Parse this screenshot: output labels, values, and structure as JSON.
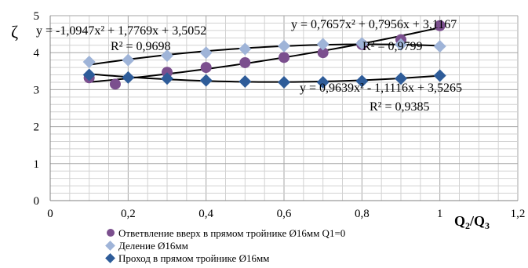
{
  "chart_data": {
    "type": "scatter",
    "title": "",
    "xlabel": "Q2/Q3",
    "xlabel_parts": [
      "Q",
      "2",
      "/Q",
      "3"
    ],
    "ylabel": "ζ",
    "xlim": [
      0,
      1.2
    ],
    "ylim": [
      0,
      5
    ],
    "x_ticks": [
      0,
      0.2,
      0.4,
      0.6,
      0.8,
      1,
      1.2
    ],
    "x_tick_labels": [
      "0",
      "0,2",
      "0,4",
      "0,6",
      "0,8",
      "1",
      "1,2"
    ],
    "y_ticks": [
      0,
      1,
      2,
      3,
      4,
      5
    ],
    "y_tick_labels": [
      "0",
      "1",
      "2",
      "3",
      "4",
      "5"
    ],
    "grid": true,
    "legend_position": "bottom",
    "series": [
      {
        "name": "Ответвление вверх  в прямом тройнике  Ø16мм Q1=0",
        "marker": "circle",
        "color": "#7b4f8e",
        "x": [
          0.1,
          0.167,
          0.3,
          0.4,
          0.5,
          0.6,
          0.7,
          0.8,
          0.9,
          1.0
        ],
        "y": [
          3.32,
          3.15,
          3.47,
          3.6,
          3.73,
          3.87,
          4.0,
          4.22,
          4.35,
          4.73
        ]
      },
      {
        "name": "Деление Ø16мм",
        "marker": "diamond",
        "color": "#9fb4d8",
        "x": [
          0.1,
          0.2,
          0.3,
          0.4,
          0.5,
          0.6,
          0.7,
          0.8,
          0.9,
          1.0
        ],
        "y": [
          3.75,
          3.8,
          3.92,
          4.0,
          4.1,
          4.18,
          4.23,
          4.25,
          4.22,
          4.17
        ]
      },
      {
        "name": "Проход в прямом тройнике  Ø16мм",
        "marker": "diamond",
        "color": "#2e5c99",
        "x": [
          0.1,
          0.2,
          0.3,
          0.4,
          0.5,
          0.6,
          0.7,
          0.8,
          0.9,
          1.0
        ],
        "y": [
          3.4,
          3.33,
          3.3,
          3.25,
          3.22,
          3.2,
          3.2,
          3.23,
          3.3,
          3.38
        ]
      }
    ],
    "trendlines": [
      {
        "a": 0.7657,
        "b": 0.7956,
        "c": 3.1167,
        "equation": "y = 0,7657x² + 0,7956x + 3,1167",
        "r2": "R² = 0,9799"
      },
      {
        "a": -1.0947,
        "b": 1.7769,
        "c": 3.5052,
        "equation": "y = -1,0947x² + 1,7769x + 3,5052",
        "r2": "R² = 0,9698"
      },
      {
        "a": 0.9639,
        "b": -1.1116,
        "c": 3.5265,
        "equation": "y = 0,9639x² - 1,1116x + 3,5265",
        "r2": "R² = 0,9385"
      }
    ],
    "trend_range": [
      0.1,
      1.0
    ]
  }
}
